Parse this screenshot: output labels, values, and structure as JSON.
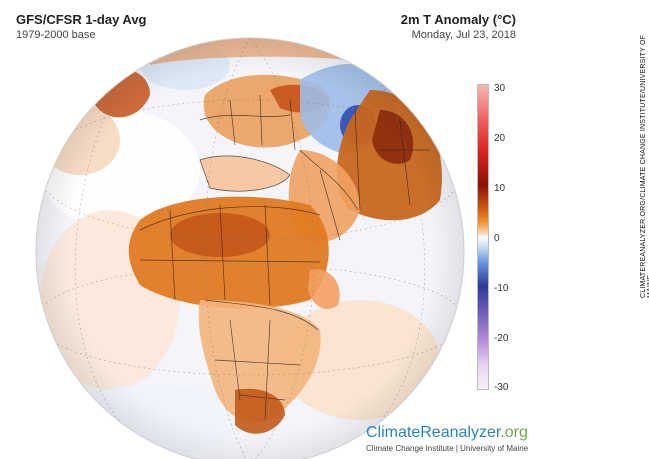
{
  "header": {
    "title_left": "GFS/CFSR 1-day Avg",
    "subtitle_left": "1979-2000 base",
    "title_right": "2m T Anomaly (°C)",
    "subtitle_right": "Monday, Jul 23, 2018"
  },
  "legend": {
    "ticks": [
      "30",
      "20",
      "10",
      "0",
      "-10",
      "-20",
      "-30"
    ],
    "tick_values": [
      30,
      20,
      10,
      0,
      -10,
      -20,
      -30
    ]
  },
  "credit": {
    "vertical": "CLIMATEREANALYZER.ORG/CLIMATE CHANGE INSTITUTE/UNIVERSITY OF MAINE",
    "logo_main": "ClimateReanalyzer",
    "logo_accent": ".org",
    "logo_sub": "Climate Change Institute | University of Maine"
  },
  "colors": {
    "ocean_neutral": "#f4f6fb",
    "warm_anomaly": "#e5802b",
    "strong_warm": "#9e2a0e",
    "cold_anomaly": "#3a58b8",
    "brand_blue": "#2a82c4",
    "brand_green": "#6fa845"
  }
}
